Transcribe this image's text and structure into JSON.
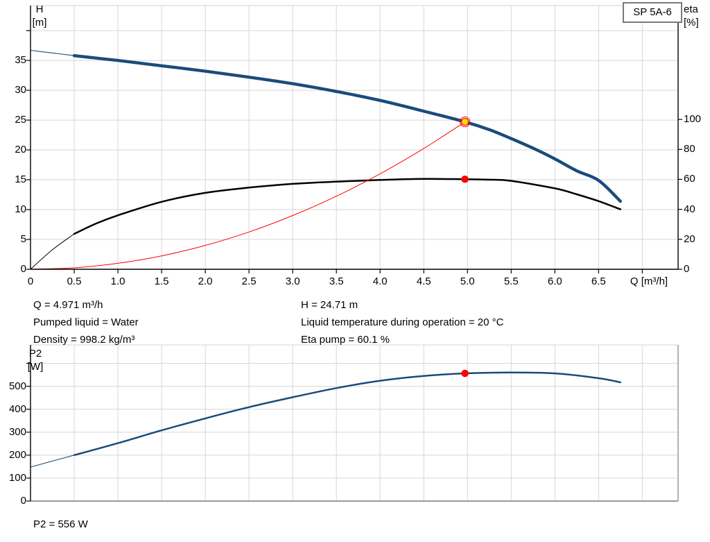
{
  "title_box": {
    "label": "SP 5A-6"
  },
  "info": {
    "q": "Q = 4.971 m³/h",
    "pumped_liquid": "Pumped liquid = Water",
    "density": "Density = 998.2 kg/m³",
    "h": "H = 24.71 m",
    "liquid_temp": "Liquid temperature during operation = 20 °C",
    "eta_pump": "Eta pump = 60.1 %",
    "p2": "P2 = 556 W"
  },
  "colors": {
    "curve_blue": "#1A4B7C",
    "curve_black": "#000000",
    "curve_red": "#FF0000",
    "duty_yellow": "#FFE600",
    "dot_red": "#FF0000",
    "grid": "#D6D6D6",
    "axis": "#000000",
    "axis_gray": "#9A9A9A",
    "border_gray": "#808080"
  },
  "chart_data": [
    {
      "type": "line",
      "name": "head-efficiency-chart",
      "x_axis": {
        "title": "Q [m³/h]",
        "min": 0,
        "max": 7.41,
        "grid_step": 0.5,
        "tick_values": [
          0.5,
          1.0,
          1.5,
          2.0,
          2.5,
          3.0,
          3.5,
          4.0,
          4.5,
          5.0,
          5.5,
          6.0,
          6.5,
          7.0
        ],
        "label_values": [
          0,
          0.5,
          1.0,
          1.5,
          2.0,
          2.5,
          3.0,
          3.5,
          4.0,
          4.5,
          5.0,
          5.5,
          6.0,
          6.5
        ],
        "labels": [
          "0",
          "0.5",
          "1.0",
          "1.5",
          "2.0",
          "2.5",
          "3.0",
          "3.5",
          "4.0",
          "4.5",
          "5.0",
          "5.5",
          "6.0",
          "6.5"
        ]
      },
      "left_axis": {
        "title_lines": [
          "H",
          "[m]"
        ],
        "min": 0,
        "max": 44.2,
        "grid_step": 5,
        "tick_values": [
          0,
          5,
          10,
          15,
          20,
          25,
          30,
          35,
          40
        ],
        "label_values": [
          0,
          5,
          10,
          15,
          20,
          25,
          30,
          35
        ],
        "labels": [
          "0",
          "5",
          "10",
          "15",
          "20",
          "25",
          "30",
          "35"
        ]
      },
      "right_axis": {
        "title_lines": [
          "eta",
          "[%]"
        ],
        "min": 0,
        "max": 176,
        "grid_step": 20,
        "tick_values": [
          0,
          20,
          40,
          60,
          80,
          100
        ],
        "label_values": [
          0,
          20,
          40,
          60,
          80,
          100
        ],
        "labels": [
          "0",
          "20",
          "40",
          "60",
          "80",
          "100"
        ]
      },
      "series": [
        {
          "name": "head-curve",
          "axis": "left",
          "color": "#1A4B7C",
          "width": 4.4,
          "lead_width": 1.1,
          "thin_until": 0.5,
          "points": [
            [
              0,
              36.7
            ],
            [
              0.25,
              36.25
            ],
            [
              0.5,
              35.8
            ],
            [
              1,
              35.0
            ],
            [
              1.5,
              34.1
            ],
            [
              2,
              33.2
            ],
            [
              2.5,
              32.2
            ],
            [
              3,
              31.1
            ],
            [
              3.5,
              29.8
            ],
            [
              4,
              28.3
            ],
            [
              4.5,
              26.5
            ],
            [
              4.971,
              24.71
            ],
            [
              5.25,
              23.4
            ],
            [
              5.5,
              21.9
            ],
            [
              5.75,
              20.3
            ],
            [
              6,
              18.5
            ],
            [
              6.25,
              16.5
            ],
            [
              6.5,
              14.9
            ],
            [
              6.75,
              11.4
            ]
          ]
        },
        {
          "name": "efficiency-curve",
          "axis": "right",
          "color": "#000000",
          "width": 2.5,
          "lead_width": 1.0,
          "thin_until": 0.5,
          "points": [
            [
              0,
              0
            ],
            [
              0.25,
              13
            ],
            [
              0.5,
              23.6
            ],
            [
              0.75,
              30.5
            ],
            [
              1,
              36
            ],
            [
              1.5,
              45
            ],
            [
              2,
              51
            ],
            [
              2.5,
              54.5
            ],
            [
              3,
              57
            ],
            [
              3.5,
              58.5
            ],
            [
              4,
              59.6
            ],
            [
              4.5,
              60.3
            ],
            [
              4.971,
              60.1
            ],
            [
              5.25,
              59.8
            ],
            [
              5.5,
              59
            ],
            [
              6,
              54
            ],
            [
              6.25,
              50
            ],
            [
              6.5,
              45.5
            ],
            [
              6.75,
              40
            ]
          ]
        },
        {
          "name": "system-curve",
          "axis": "left",
          "color": "#FF0000",
          "width": 1.0,
          "lead_width": 1.0,
          "thin_until": 0,
          "points": [
            [
              0,
              0
            ],
            [
              0.5,
              0.25
            ],
            [
              1,
              1
            ],
            [
              1.5,
              2.25
            ],
            [
              2,
              4
            ],
            [
              2.5,
              6.25
            ],
            [
              3,
              9
            ],
            [
              3.5,
              12.25
            ],
            [
              4,
              16
            ],
            [
              4.5,
              20.25
            ],
            [
              4.971,
              24.71
            ]
          ]
        }
      ],
      "markers": [
        {
          "name": "duty-point-head",
          "x": 4.971,
          "value": 24.71,
          "axis": "left",
          "style": "yellow-ring"
        },
        {
          "name": "duty-point-efficiency",
          "x": 4.971,
          "value": 60.1,
          "axis": "right",
          "style": "red-dot"
        }
      ]
    },
    {
      "type": "line",
      "name": "p2-power-chart",
      "x_axis": {
        "min": 0,
        "max": 7.41,
        "grid_step": 0.5,
        "tick_values": [],
        "label_values": [],
        "labels": []
      },
      "left_axis": {
        "title_lines": [
          "P2",
          "[W]"
        ],
        "min": 0,
        "max": 680,
        "grid_step": 100,
        "tick_values": [
          0,
          100,
          200,
          300,
          400,
          500,
          600
        ],
        "label_values": [
          0,
          100,
          200,
          300,
          400,
          500
        ],
        "labels": [
          "0",
          "100",
          "200",
          "300",
          "400",
          "500"
        ]
      },
      "series": [
        {
          "name": "p2-curve",
          "axis": "left",
          "color": "#1A4B7C",
          "width": 2.5,
          "lead_width": 1.1,
          "thin_until": 0.5,
          "points": [
            [
              0,
              148
            ],
            [
              0.25,
              174
            ],
            [
              0.5,
              200
            ],
            [
              1,
              252
            ],
            [
              1.5,
              308
            ],
            [
              2,
              360
            ],
            [
              2.5,
              409
            ],
            [
              3,
              452
            ],
            [
              3.5,
              492
            ],
            [
              4,
              524
            ],
            [
              4.5,
              545
            ],
            [
              4.971,
              556
            ],
            [
              5.5,
              560
            ],
            [
              6,
              556
            ],
            [
              6.5,
              535
            ],
            [
              6.75,
              517
            ]
          ]
        }
      ],
      "markers": [
        {
          "name": "duty-point-p2",
          "x": 4.971,
          "value": 556,
          "axis": "left",
          "style": "red-dot"
        }
      ]
    }
  ]
}
